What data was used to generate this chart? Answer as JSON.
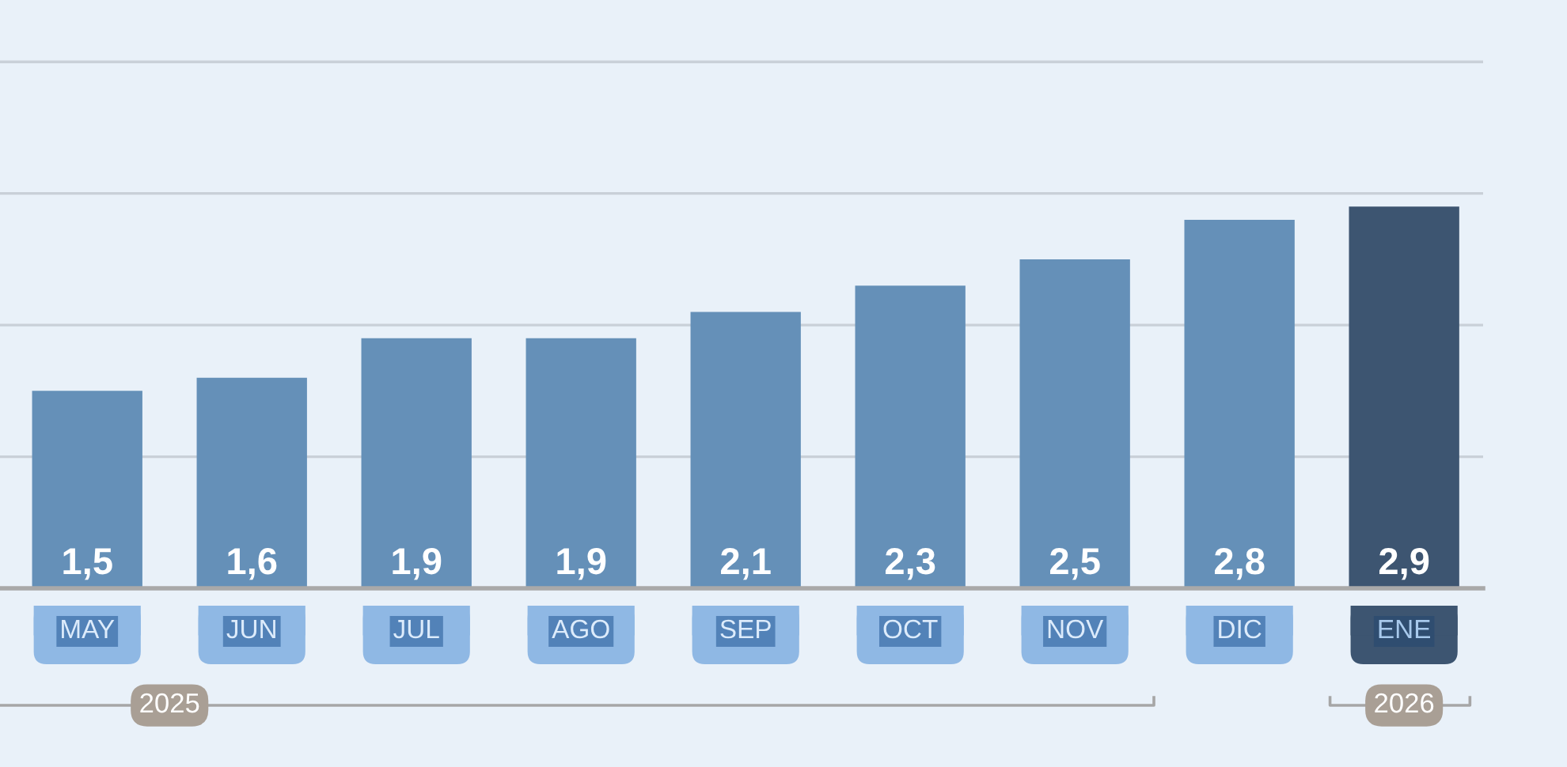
{
  "chart_data": {
    "type": "bar",
    "categories": [
      "MAY",
      "JUN",
      "JUL",
      "AGO",
      "SEP",
      "OCT",
      "NOV",
      "DIC",
      "ENE"
    ],
    "values": [
      1.5,
      1.6,
      1.9,
      1.9,
      2.1,
      2.3,
      2.5,
      2.8,
      2.9
    ],
    "colors": [
      "#6590b8",
      "#6590b8",
      "#6590b8",
      "#6590b8",
      "#6590b8",
      "#6590b8",
      "#6590b8",
      "#6590b8",
      "#3d5571"
    ],
    "value_labels": [
      "1,5",
      "1,6",
      "1,9",
      "1,9",
      "2,1",
      "2,3",
      "2,5",
      "2,8",
      "2,9"
    ],
    "ylim": [
      0,
      4.47
    ],
    "yticks": [
      {
        "value": 1,
        "label": null
      },
      {
        "value": 2,
        "label": null
      },
      {
        "value": 3,
        "label": null
      },
      {
        "value": 4,
        "label": null
      }
    ],
    "tick_labels": "x",
    "grid": "y",
    "annotations": [
      "2025",
      "2026"
    ]
  }
}
